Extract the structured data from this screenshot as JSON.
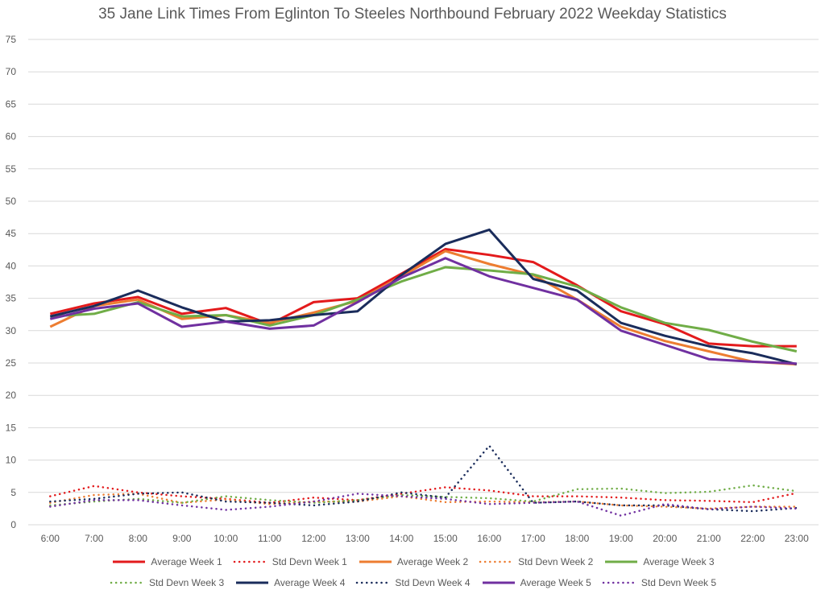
{
  "chart_data": {
    "type": "line",
    "title": "35 Jane Link Times From Eglinton To Steeles Northbound February 2022 Weekday Statistics",
    "xlabel": "",
    "ylabel": "",
    "ylim": [
      0,
      75
    ],
    "yticks": [
      "0",
      "5",
      "10",
      "15",
      "20",
      "25",
      "30",
      "35",
      "40",
      "45",
      "50",
      "55",
      "60",
      "65",
      "70",
      "75"
    ],
    "grid": true,
    "legend_position": "bottom",
    "categories": [
      "6:00",
      "7:00",
      "8:00",
      "9:00",
      "10:00",
      "11:00",
      "12:00",
      "13:00",
      "14:00",
      "15:00",
      "16:00",
      "17:00",
      "18:00",
      "19:00",
      "20:00",
      "21:00",
      "22:00",
      "23:00"
    ],
    "series": [
      {
        "name": "Average Week 1",
        "color": "#e31a1c",
        "style": "solid",
        "values": [
          32.6,
          34.2,
          35.2,
          32.6,
          33.5,
          31.0,
          34.4,
          35.0,
          38.8,
          42.6,
          41.7,
          40.6,
          37.0,
          33.0,
          31.0,
          28.0,
          27.6,
          27.6
        ]
      },
      {
        "name": "Std Devn Week 1",
        "color": "#e31a1c",
        "style": "dotted",
        "values": [
          4.4,
          6.0,
          5.0,
          4.4,
          4.0,
          3.4,
          4.2,
          3.8,
          4.8,
          5.8,
          5.3,
          4.4,
          4.4,
          4.2,
          3.8,
          3.7,
          3.5,
          4.9
        ]
      },
      {
        "name": "Average Week 2",
        "color": "#ed7d31",
        "style": "solid",
        "values": [
          30.6,
          33.8,
          34.8,
          31.8,
          32.4,
          31.2,
          32.8,
          34.6,
          38.4,
          42.3,
          40.3,
          38.6,
          34.8,
          30.6,
          28.4,
          26.8,
          25.2,
          24.8
        ]
      },
      {
        "name": "Std Devn Week 2",
        "color": "#ed7d31",
        "style": "dotted",
        "values": [
          3.4,
          4.6,
          4.8,
          3.4,
          3.9,
          3.2,
          3.6,
          3.6,
          4.4,
          3.5,
          3.6,
          3.5,
          3.6,
          3.0,
          2.8,
          2.5,
          2.8,
          2.8
        ]
      },
      {
        "name": "Average Week 3",
        "color": "#70ad47",
        "style": "solid",
        "values": [
          32.2,
          32.6,
          34.4,
          32.2,
          32.4,
          30.8,
          32.4,
          34.8,
          37.6,
          39.8,
          39.3,
          38.7,
          36.8,
          33.6,
          31.2,
          30.1,
          28.3,
          26.8
        ]
      },
      {
        "name": "Std Devn Week 3",
        "color": "#70ad47",
        "style": "dotted",
        "values": [
          3.0,
          3.6,
          4.0,
          3.4,
          4.4,
          3.8,
          3.4,
          3.8,
          4.6,
          4.3,
          4.1,
          3.6,
          5.5,
          5.6,
          4.9,
          5.1,
          6.1,
          5.2
        ]
      },
      {
        "name": "Average Week 4",
        "color": "#1a2c5b",
        "style": "solid",
        "values": [
          32.2,
          33.8,
          36.2,
          33.6,
          31.4,
          31.6,
          32.4,
          33.0,
          38.6,
          43.4,
          45.6,
          38.0,
          36.2,
          31.2,
          29.2,
          27.6,
          26.5,
          24.8
        ]
      },
      {
        "name": "Std Devn Week 4",
        "color": "#1a2c5b",
        "style": "dotted",
        "values": [
          3.6,
          4.0,
          4.8,
          5.0,
          3.6,
          3.4,
          3.0,
          3.6,
          5.0,
          4.2,
          12.2,
          3.4,
          3.6,
          3.0,
          3.0,
          2.4,
          2.1,
          2.6
        ]
      },
      {
        "name": "Average Week 5",
        "color": "#7030a0",
        "style": "solid",
        "values": [
          31.8,
          33.4,
          34.2,
          30.6,
          31.4,
          30.3,
          30.8,
          34.4,
          38.2,
          41.2,
          38.4,
          36.6,
          34.8,
          30.0,
          27.8,
          25.6,
          25.2,
          24.9
        ]
      },
      {
        "name": "Std Devn Week 5",
        "color": "#7030a0",
        "style": "dotted",
        "values": [
          2.8,
          3.8,
          3.8,
          3.0,
          2.3,
          2.8,
          3.6,
          4.8,
          4.4,
          4.0,
          3.2,
          3.4,
          3.6,
          1.4,
          3.2,
          2.4,
          2.8,
          2.5
        ]
      }
    ]
  }
}
